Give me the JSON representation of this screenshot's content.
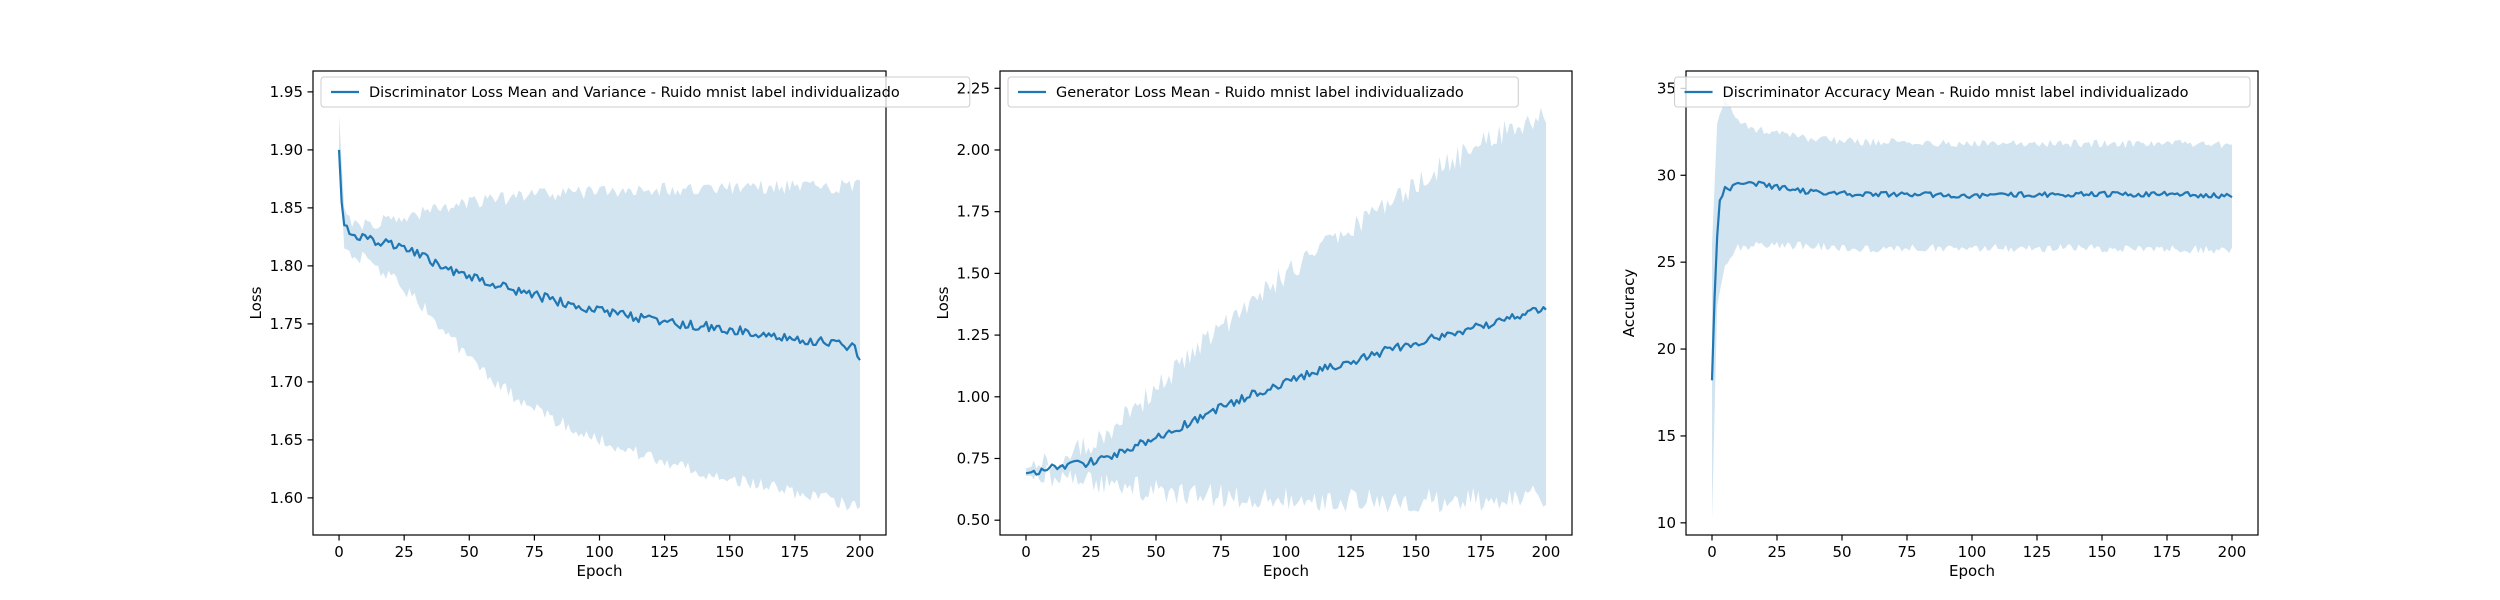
{
  "colors": {
    "line": "#1f77b4",
    "band": "#1f77b4",
    "axis": "#000000",
    "background": "#ffffff"
  },
  "chart_data": [
    {
      "type": "line",
      "legend": "Discriminator Loss Mean and Variance - Ruido mnist label individualizado",
      "legend_position": "upper-left",
      "xlabel": "Epoch",
      "ylabel": "Loss",
      "xlim": [
        -10,
        210
      ],
      "ylim": [
        1.568,
        1.968
      ],
      "xticks": [
        0,
        25,
        50,
        75,
        100,
        125,
        150,
        175,
        200
      ],
      "yticks": [
        1.6,
        1.65,
        1.7,
        1.75,
        1.8,
        1.85,
        1.9,
        1.95
      ],
      "ytick_labels": [
        "1.60",
        "1.65",
        "1.70",
        "1.75",
        "1.80",
        "1.85",
        "1.90",
        "1.95"
      ],
      "mean_points": [
        [
          0,
          1.9
        ],
        [
          1,
          1.855
        ],
        [
          2,
          1.835
        ],
        [
          5,
          1.827
        ],
        [
          10,
          1.823
        ],
        [
          20,
          1.818
        ],
        [
          30,
          1.81
        ],
        [
          40,
          1.8
        ],
        [
          50,
          1.79
        ],
        [
          60,
          1.784
        ],
        [
          70,
          1.777
        ],
        [
          80,
          1.772
        ],
        [
          90,
          1.766
        ],
        [
          100,
          1.762
        ],
        [
          110,
          1.757
        ],
        [
          120,
          1.754
        ],
        [
          130,
          1.75
        ],
        [
          140,
          1.748
        ],
        [
          150,
          1.745
        ],
        [
          160,
          1.742
        ],
        [
          170,
          1.739
        ],
        [
          180,
          1.736
        ],
        [
          190,
          1.733
        ],
        [
          198,
          1.73
        ],
        [
          200,
          1.72
        ]
      ],
      "lower_points": [
        [
          0,
          1.9
        ],
        [
          2,
          1.815
        ],
        [
          5,
          1.812
        ],
        [
          10,
          1.805
        ],
        [
          20,
          1.79
        ],
        [
          30,
          1.77
        ],
        [
          40,
          1.745
        ],
        [
          50,
          1.72
        ],
        [
          60,
          1.7
        ],
        [
          70,
          1.683
        ],
        [
          80,
          1.67
        ],
        [
          90,
          1.66
        ],
        [
          100,
          1.65
        ],
        [
          110,
          1.642
        ],
        [
          120,
          1.635
        ],
        [
          130,
          1.628
        ],
        [
          140,
          1.622
        ],
        [
          150,
          1.617
        ],
        [
          160,
          1.612
        ],
        [
          170,
          1.607
        ],
        [
          180,
          1.602
        ],
        [
          190,
          1.598
        ],
        [
          200,
          1.592
        ]
      ],
      "upper_points": [
        [
          0,
          1.93
        ],
        [
          2,
          1.85
        ],
        [
          5,
          1.838
        ],
        [
          10,
          1.835
        ],
        [
          20,
          1.84
        ],
        [
          30,
          1.845
        ],
        [
          40,
          1.85
        ],
        [
          50,
          1.855
        ],
        [
          60,
          1.857
        ],
        [
          70,
          1.86
        ],
        [
          80,
          1.862
        ],
        [
          90,
          1.863
        ],
        [
          100,
          1.864
        ],
        [
          110,
          1.865
        ],
        [
          120,
          1.866
        ],
        [
          130,
          1.866
        ],
        [
          140,
          1.867
        ],
        [
          150,
          1.867
        ],
        [
          160,
          1.868
        ],
        [
          170,
          1.868
        ],
        [
          180,
          1.868
        ],
        [
          190,
          1.868
        ],
        [
          200,
          1.87
        ]
      ],
      "noise": 0.004,
      "band_noise": 0.006
    },
    {
      "type": "line",
      "legend": "Generator Loss Mean - Ruido mnist label individualizado",
      "legend_position": "upper-left",
      "xlabel": "Epoch",
      "ylabel": "Loss",
      "xlim": [
        -10,
        210
      ],
      "ylim": [
        0.44,
        2.32
      ],
      "xticks": [
        0,
        25,
        50,
        75,
        100,
        125,
        150,
        175,
        200
      ],
      "yticks": [
        0.5,
        0.75,
        1.0,
        1.25,
        1.5,
        1.75,
        2.0,
        2.25
      ],
      "ytick_labels": [
        "0.50",
        "0.75",
        "1.00",
        "1.25",
        "1.50",
        "1.75",
        "2.00",
        "2.25"
      ],
      "mean_points": [
        [
          0,
          0.69
        ],
        [
          10,
          0.71
        ],
        [
          20,
          0.725
        ],
        [
          30,
          0.75
        ],
        [
          40,
          0.79
        ],
        [
          50,
          0.83
        ],
        [
          60,
          0.88
        ],
        [
          70,
          0.93
        ],
        [
          80,
          0.98
        ],
        [
          90,
          1.02
        ],
        [
          100,
          1.06
        ],
        [
          110,
          1.1
        ],
        [
          120,
          1.13
        ],
        [
          130,
          1.16
        ],
        [
          140,
          1.19
        ],
        [
          150,
          1.22
        ],
        [
          160,
          1.25
        ],
        [
          170,
          1.27
        ],
        [
          180,
          1.3
        ],
        [
          190,
          1.33
        ],
        [
          195,
          1.36
        ],
        [
          200,
          1.35
        ]
      ],
      "lower_points": [
        [
          0,
          0.68
        ],
        [
          10,
          0.68
        ],
        [
          20,
          0.67
        ],
        [
          30,
          0.65
        ],
        [
          40,
          0.63
        ],
        [
          50,
          0.62
        ],
        [
          60,
          0.61
        ],
        [
          70,
          0.6
        ],
        [
          80,
          0.6
        ],
        [
          90,
          0.59
        ],
        [
          100,
          0.59
        ],
        [
          110,
          0.58
        ],
        [
          120,
          0.58
        ],
        [
          130,
          0.58
        ],
        [
          140,
          0.58
        ],
        [
          150,
          0.58
        ],
        [
          160,
          0.58
        ],
        [
          170,
          0.58
        ],
        [
          180,
          0.59
        ],
        [
          190,
          0.59
        ],
        [
          200,
          0.6
        ]
      ],
      "upper_points": [
        [
          0,
          0.71
        ],
        [
          10,
          0.74
        ],
        [
          20,
          0.78
        ],
        [
          30,
          0.85
        ],
        [
          40,
          0.93
        ],
        [
          50,
          1.03
        ],
        [
          60,
          1.13
        ],
        [
          70,
          1.23
        ],
        [
          80,
          1.33
        ],
        [
          90,
          1.42
        ],
        [
          100,
          1.5
        ],
        [
          110,
          1.58
        ],
        [
          120,
          1.65
        ],
        [
          130,
          1.72
        ],
        [
          140,
          1.8
        ],
        [
          150,
          1.86
        ],
        [
          160,
          1.93
        ],
        [
          170,
          1.99
        ],
        [
          180,
          2.05
        ],
        [
          190,
          2.1
        ],
        [
          200,
          2.14
        ]
      ],
      "noise": 0.018,
      "band_noise": 0.05
    },
    {
      "type": "line",
      "legend": "Discriminator Accuracy Mean - Ruido mnist label individualizado",
      "legend_position": "upper-right",
      "xlabel": "Epoch",
      "ylabel": "Accuracy",
      "xlim": [
        -10,
        210
      ],
      "ylim": [
        9.3,
        36.0
      ],
      "xticks": [
        0,
        25,
        50,
        75,
        100,
        125,
        150,
        175,
        200
      ],
      "yticks": [
        10,
        15,
        20,
        25,
        30,
        35
      ],
      "ytick_labels": [
        "10",
        "15",
        "20",
        "25",
        "30",
        "35"
      ],
      "mean_points": [
        [
          0,
          18.2
        ],
        [
          1,
          23.0
        ],
        [
          2,
          26.5
        ],
        [
          3,
          28.5
        ],
        [
          5,
          29.2
        ],
        [
          8,
          29.3
        ],
        [
          10,
          29.6
        ],
        [
          15,
          29.6
        ],
        [
          20,
          29.4
        ],
        [
          30,
          29.2
        ],
        [
          40,
          29.0
        ],
        [
          60,
          28.9
        ],
        [
          80,
          28.9
        ],
        [
          100,
          28.8
        ],
        [
          120,
          28.9
        ],
        [
          140,
          28.9
        ],
        [
          160,
          28.9
        ],
        [
          180,
          28.9
        ],
        [
          200,
          28.8
        ]
      ],
      "lower_points": [
        [
          0,
          10.2
        ],
        [
          2,
          22.5
        ],
        [
          5,
          25.0
        ],
        [
          10,
          25.8
        ],
        [
          20,
          26.0
        ],
        [
          40,
          25.9
        ],
        [
          60,
          25.8
        ],
        [
          80,
          25.8
        ],
        [
          100,
          25.8
        ],
        [
          120,
          25.8
        ],
        [
          140,
          25.8
        ],
        [
          160,
          25.8
        ],
        [
          180,
          25.8
        ],
        [
          200,
          25.6
        ]
      ],
      "upper_points": [
        [
          0,
          26.0
        ],
        [
          2,
          33.0
        ],
        [
          5,
          34.5
        ],
        [
          8,
          33.5
        ],
        [
          15,
          32.8
        ],
        [
          20,
          32.5
        ],
        [
          40,
          32.1
        ],
        [
          60,
          31.9
        ],
        [
          80,
          31.9
        ],
        [
          100,
          31.8
        ],
        [
          120,
          31.8
        ],
        [
          140,
          31.8
        ],
        [
          160,
          31.8
        ],
        [
          180,
          31.8
        ],
        [
          200,
          31.7
        ]
      ],
      "noise": 0.15,
      "band_noise": 0.25
    }
  ]
}
